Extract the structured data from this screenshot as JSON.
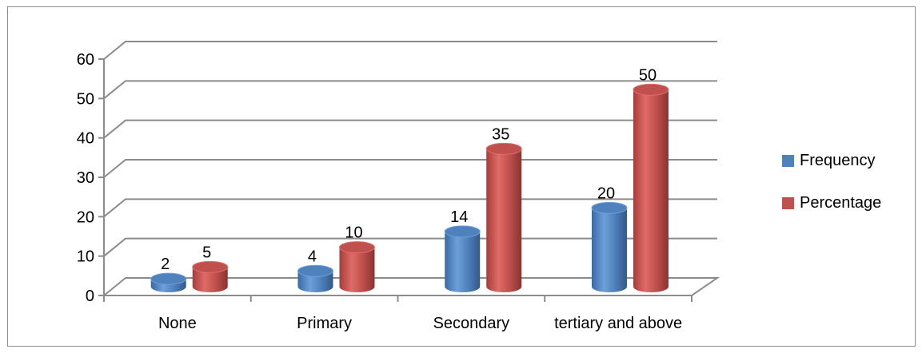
{
  "chart_data": {
    "type": "bar",
    "categories": [
      "None",
      "Primary",
      "Secondary",
      "tertiary and above"
    ],
    "series": [
      {
        "name": "Frequency",
        "values": [
          2,
          4,
          14,
          20
        ],
        "color": "#4f81bd"
      },
      {
        "name": "Percentage",
        "values": [
          5,
          10,
          35,
          50
        ],
        "color": "#c0504d"
      }
    ],
    "ylim": [
      0,
      60
    ],
    "yticks": [
      0,
      10,
      20,
      30,
      40,
      50,
      60
    ],
    "grid": true,
    "style": "3d-cylinder",
    "legend_position": "right",
    "data_labels": true
  }
}
